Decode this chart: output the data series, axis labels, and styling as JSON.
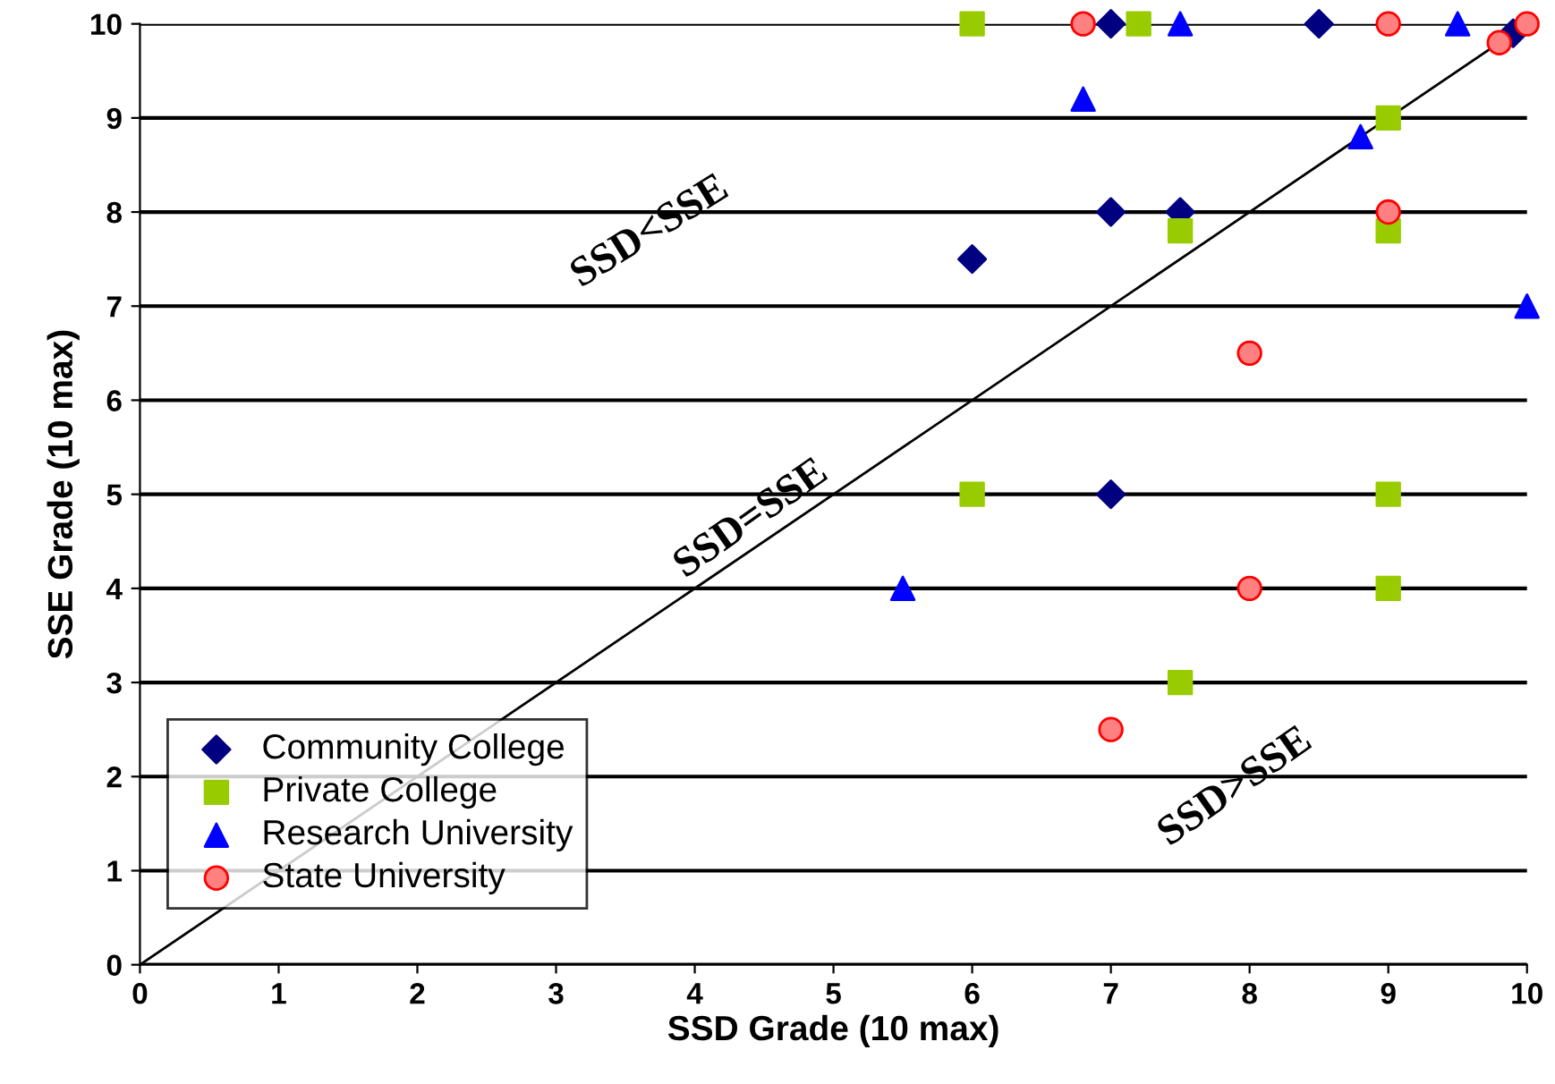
{
  "chart_data": {
    "type": "scatter",
    "xlabel": "SSD Grade (10 max)",
    "ylabel": "SSE Grade (10 max)",
    "xlim": [
      0,
      10
    ],
    "ylim": [
      0,
      10
    ],
    "xticks": [
      0,
      1,
      2,
      3,
      4,
      5,
      6,
      7,
      8,
      9,
      10
    ],
    "yticks": [
      0,
      1,
      2,
      3,
      4,
      5,
      6,
      7,
      8,
      9,
      10
    ],
    "grid": "y",
    "legend": "bottom left",
    "series": [
      {
        "name": "Community College",
        "color": "#000080",
        "marker": "diamond",
        "x": [
          7,
          8.5,
          6,
          7,
          7.5,
          7,
          9.9
        ],
        "values": [
          10,
          10,
          7.5,
          8,
          8,
          5,
          9.9
        ]
      },
      {
        "name": "Private College",
        "color": "#99cc00",
        "marker": "square",
        "x": [
          6,
          7.2,
          9,
          7.5,
          9,
          6,
          9,
          9,
          7.5
        ],
        "values": [
          10,
          10,
          9,
          7.8,
          7.8,
          5,
          5,
          4,
          3
        ]
      },
      {
        "name": "Research University",
        "color": "#0000ff",
        "marker": "triangle",
        "x": [
          7.5,
          9.5,
          6.8,
          8.8,
          10,
          5.5
        ],
        "values": [
          10,
          10,
          9.2,
          8.8,
          7,
          4
        ]
      },
      {
        "name": "State University",
        "color": "#ff8080",
        "marker": "circle",
        "x": [
          6.8,
          9,
          10,
          9.8,
          9,
          8,
          8,
          7
        ],
        "values": [
          10,
          10,
          10,
          9.8,
          8,
          6.5,
          4,
          2.5
        ]
      },
      {
        "type": "line",
        "color": "#000000",
        "x": [
          0,
          10
        ],
        "values": [
          0,
          10
        ]
      }
    ],
    "annotations": [
      "SSD<SSE",
      "SSD=SSE",
      "SSD>SSE"
    ]
  }
}
